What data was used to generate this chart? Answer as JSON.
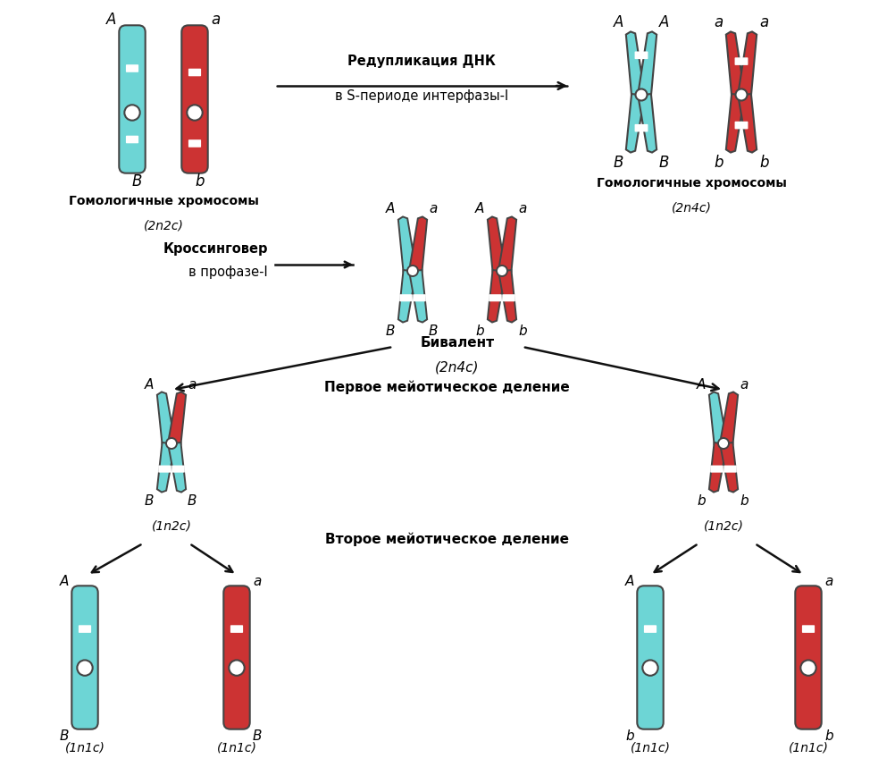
{
  "bg_color": "#ffffff",
  "cyan_color": "#6dd5d5",
  "red_color": "#cc3333",
  "dark_outline": "#444444",
  "text_color": "#111111",
  "label_redup_line1": "Редупликация ДНК",
  "label_redup_line2": "в S-периоде интерфазы-I",
  "label_homo_2n2c_line1": "Гомологичные хромосомы",
  "label_homo_2n2c_line2": "(2n2c)",
  "label_homo_2n4c_line1": "Гомологичные хромосомы",
  "label_homo_2n4c_line2": "(2n4c)",
  "label_crossover_line1": "Кроссинговер",
  "label_crossover_line2": "в профазе-I",
  "label_bivalent_line1": "Бивалент",
  "label_bivalent_line2": "(2n4c)",
  "label_first_div": "Первое мейотическое деление",
  "label_second_div": "Второе мейотическое деление",
  "label_1n2c": "(1n2c)",
  "label_1n1c": "(1n1c)"
}
